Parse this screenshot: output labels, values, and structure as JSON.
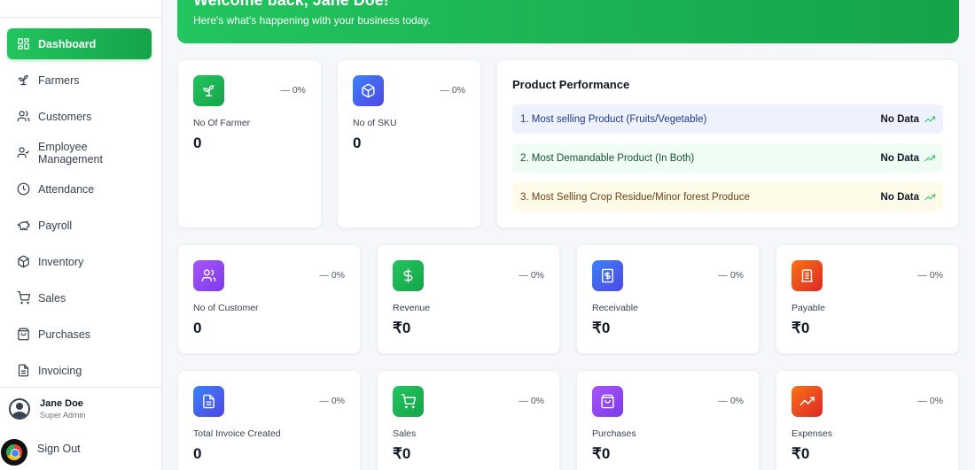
{
  "sidebar": {
    "items": [
      {
        "label": "Dashboard",
        "icon": "dashboard-grid-icon",
        "active": true
      },
      {
        "label": "Farmers",
        "icon": "sprout-icon"
      },
      {
        "label": "Customers",
        "icon": "users-icon"
      },
      {
        "label": "Employee Management",
        "icon": "user-check-icon"
      },
      {
        "label": "Attendance",
        "icon": "clock-icon"
      },
      {
        "label": "Payroll",
        "icon": "piggy-bank-icon"
      },
      {
        "label": "Inventory",
        "icon": "package-icon"
      },
      {
        "label": "Sales",
        "icon": "shopping-cart-icon"
      },
      {
        "label": "Purchases",
        "icon": "shopping-bag-icon"
      },
      {
        "label": "Invoicing",
        "icon": "file-text-icon"
      }
    ],
    "user": {
      "name": "Jane Doe",
      "role": "Super Admin"
    },
    "signout": "Sign Out"
  },
  "banner": {
    "title": "Welcome back, Jane Doe!",
    "subtitle": "Here's what's happening with your business today."
  },
  "top_stats": [
    {
      "label": "No Of Farmer",
      "value": "0",
      "change": "— 0%",
      "icon": "sprout-icon"
    },
    {
      "label": "No of SKU",
      "value": "0",
      "change": "— 0%",
      "icon": "package-icon"
    }
  ],
  "product_performance": {
    "title": "Product Performance",
    "rows": [
      {
        "label": "1. Most selling Product (Fruits/Vegetable)",
        "value": "No Data"
      },
      {
        "label": "2. Most Demandable Product (In Both)",
        "value": "No Data"
      },
      {
        "label": "3. Most Selling Crop Residue/Minor forest Produce",
        "value": "No Data"
      }
    ]
  },
  "stats_row2": [
    {
      "label": "No of Customer",
      "value": "0",
      "change": "— 0%",
      "icon": "users-icon"
    },
    {
      "label": "Revenue",
      "value": "₹0",
      "change": "— 0%",
      "icon": "dollar-icon"
    },
    {
      "label": "Receivable",
      "value": "₹0",
      "change": "— 0%",
      "icon": "receipt-icon"
    },
    {
      "label": "Payable",
      "value": "₹0",
      "change": "— 0%",
      "icon": "bill-icon"
    }
  ],
  "stats_row3": [
    {
      "label": "Total Invoice Created",
      "value": "0",
      "change": "— 0%",
      "icon": "file-text-icon"
    },
    {
      "label": "Sales",
      "value": "₹0",
      "change": "— 0%",
      "icon": "shopping-cart-icon"
    },
    {
      "label": "Purchases",
      "value": "₹0",
      "change": "— 0%",
      "icon": "shopping-bag-icon"
    },
    {
      "label": "Expenses",
      "value": "₹0",
      "change": "— 0%",
      "icon": "trending-up-icon"
    }
  ],
  "colors": {
    "accent": "#16a34a",
    "trend": "#22c55e"
  }
}
